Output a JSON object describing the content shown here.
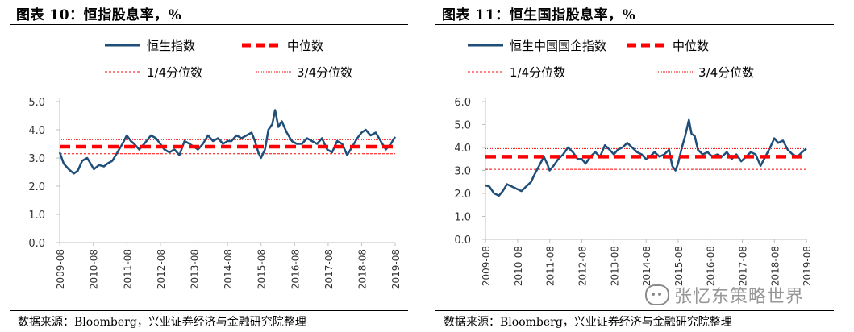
{
  "colors": {
    "series": "#1f4e79",
    "median": "#ff0000",
    "quartile": "#ff0000",
    "axis": "#bfbfbf",
    "text": "#000000"
  },
  "source": "数据来源：Bloomberg，兴业证券经济与金融研究院整理",
  "watermark": "张忆东策略世界",
  "watermark_icon": "wechat-icon",
  "chart_data": [
    {
      "type": "line",
      "title": "图表 10：恒指股息率，%",
      "legend": [
        "恒生指数",
        "中位数",
        "1/4分位数",
        "3/4分位数"
      ],
      "legend_placement": "top",
      "x_ticks": [
        "2009-08",
        "2010-08",
        "2011-08",
        "2012-08",
        "2013-08",
        "2014-08",
        "2015-08",
        "2016-08",
        "2017-08",
        "2018-08",
        "2019-08"
      ],
      "y_ticks": [
        "0.0",
        "1.0",
        "2.0",
        "3.0",
        "4.0",
        "5.0"
      ],
      "ylim": [
        0,
        5
      ],
      "xlim": [
        2009.58,
        2019.58
      ],
      "grid": false,
      "median": 3.4,
      "q1": 3.15,
      "q3": 3.65,
      "series": [
        {
          "name": "恒生指数",
          "x": [
            2009.58,
            2009.7,
            2009.85,
            2010.0,
            2010.12,
            2010.25,
            2010.4,
            2010.5,
            2010.6,
            2010.75,
            2010.9,
            2011.0,
            2011.15,
            2011.3,
            2011.45,
            2011.58,
            2011.7,
            2011.8,
            2011.95,
            2012.1,
            2012.3,
            2012.45,
            2012.58,
            2012.7,
            2012.85,
            2013.0,
            2013.15,
            2013.3,
            2013.45,
            2013.58,
            2013.7,
            2013.85,
            2014.0,
            2014.15,
            2014.3,
            2014.45,
            2014.58,
            2014.7,
            2014.85,
            2015.0,
            2015.15,
            2015.3,
            2015.4,
            2015.5,
            2015.58,
            2015.7,
            2015.8,
            2015.92,
            2016.0,
            2016.1,
            2016.2,
            2016.35,
            2016.5,
            2016.65,
            2016.8,
            2016.95,
            2017.1,
            2017.25,
            2017.4,
            2017.55,
            2017.7,
            2017.85,
            2018.0,
            2018.15,
            2018.3,
            2018.45,
            2018.58,
            2018.7,
            2018.85,
            2019.0,
            2019.15,
            2019.3,
            2019.45,
            2019.58
          ],
          "y": [
            3.2,
            2.8,
            2.6,
            2.45,
            2.55,
            2.9,
            3.0,
            2.8,
            2.6,
            2.75,
            2.7,
            2.8,
            2.9,
            3.2,
            3.5,
            3.8,
            3.6,
            3.5,
            3.3,
            3.5,
            3.8,
            3.7,
            3.5,
            3.3,
            3.2,
            3.3,
            3.1,
            3.6,
            3.5,
            3.4,
            3.3,
            3.5,
            3.8,
            3.6,
            3.7,
            3.5,
            3.6,
            3.6,
            3.8,
            3.7,
            3.8,
            3.9,
            3.6,
            3.2,
            3.0,
            3.3,
            4.0,
            4.2,
            4.7,
            4.1,
            4.3,
            3.9,
            3.6,
            3.5,
            3.5,
            3.7,
            3.6,
            3.5,
            3.7,
            3.3,
            3.2,
            3.6,
            3.5,
            3.1,
            3.4,
            3.7,
            3.9,
            4.0,
            3.8,
            3.9,
            3.6,
            3.3,
            3.5,
            3.75
          ]
        }
      ]
    },
    {
      "type": "line",
      "title": "图表 11：恒生国指股息率，%",
      "legend": [
        "恒生中国国企指数",
        "中位数",
        "1/4分位数",
        "3/4分位数"
      ],
      "legend_placement": "top",
      "x_ticks": [
        "2009-08",
        "2010-08",
        "2011-08",
        "2012-08",
        "2013-08",
        "2014-08",
        "2015-08",
        "2016-08",
        "2017-08",
        "2018-08",
        "2019-08"
      ],
      "y_ticks": [
        "0.0",
        "1.0",
        "2.0",
        "3.0",
        "4.0",
        "5.0",
        "6.0"
      ],
      "ylim": [
        0,
        6
      ],
      "xlim": [
        2009.58,
        2019.58
      ],
      "grid": false,
      "median": 3.6,
      "q1": 3.05,
      "q3": 3.95,
      "series": [
        {
          "name": "恒生中国国企指数",
          "x": [
            2009.58,
            2009.7,
            2009.85,
            2010.0,
            2010.12,
            2010.25,
            2010.4,
            2010.55,
            2010.7,
            2010.85,
            2011.0,
            2011.1,
            2011.25,
            2011.4,
            2011.5,
            2011.58,
            2011.7,
            2011.85,
            2012.0,
            2012.15,
            2012.3,
            2012.45,
            2012.58,
            2012.7,
            2012.85,
            2013.0,
            2013.15,
            2013.3,
            2013.45,
            2013.58,
            2013.7,
            2013.85,
            2014.0,
            2014.15,
            2014.3,
            2014.45,
            2014.58,
            2014.7,
            2014.85,
            2015.0,
            2015.15,
            2015.3,
            2015.4,
            2015.5,
            2015.58,
            2015.7,
            2015.8,
            2015.92,
            2016.0,
            2016.1,
            2016.2,
            2016.35,
            2016.5,
            2016.65,
            2016.8,
            2016.95,
            2017.1,
            2017.25,
            2017.4,
            2017.55,
            2017.7,
            2017.85,
            2018.0,
            2018.15,
            2018.3,
            2018.45,
            2018.58,
            2018.7,
            2018.85,
            2019.0,
            2019.15,
            2019.3,
            2019.45,
            2019.58
          ],
          "y": [
            2.35,
            2.3,
            2.0,
            1.9,
            2.1,
            2.4,
            2.3,
            2.2,
            2.1,
            2.3,
            2.5,
            2.8,
            3.2,
            3.6,
            3.3,
            3.0,
            3.2,
            3.5,
            3.7,
            4.0,
            3.8,
            3.5,
            3.5,
            3.3,
            3.6,
            3.8,
            3.6,
            4.1,
            3.9,
            3.7,
            3.9,
            4.0,
            4.2,
            4.0,
            3.8,
            3.7,
            3.5,
            3.6,
            3.8,
            3.6,
            3.7,
            3.9,
            3.2,
            3.0,
            3.3,
            4.0,
            4.5,
            5.2,
            4.6,
            4.5,
            3.9,
            3.7,
            3.8,
            3.6,
            3.7,
            3.6,
            3.8,
            3.5,
            3.7,
            3.4,
            3.6,
            3.8,
            3.7,
            3.2,
            3.6,
            4.0,
            4.4,
            4.2,
            4.3,
            3.9,
            3.7,
            3.6,
            3.8,
            3.95
          ]
        }
      ]
    }
  ]
}
